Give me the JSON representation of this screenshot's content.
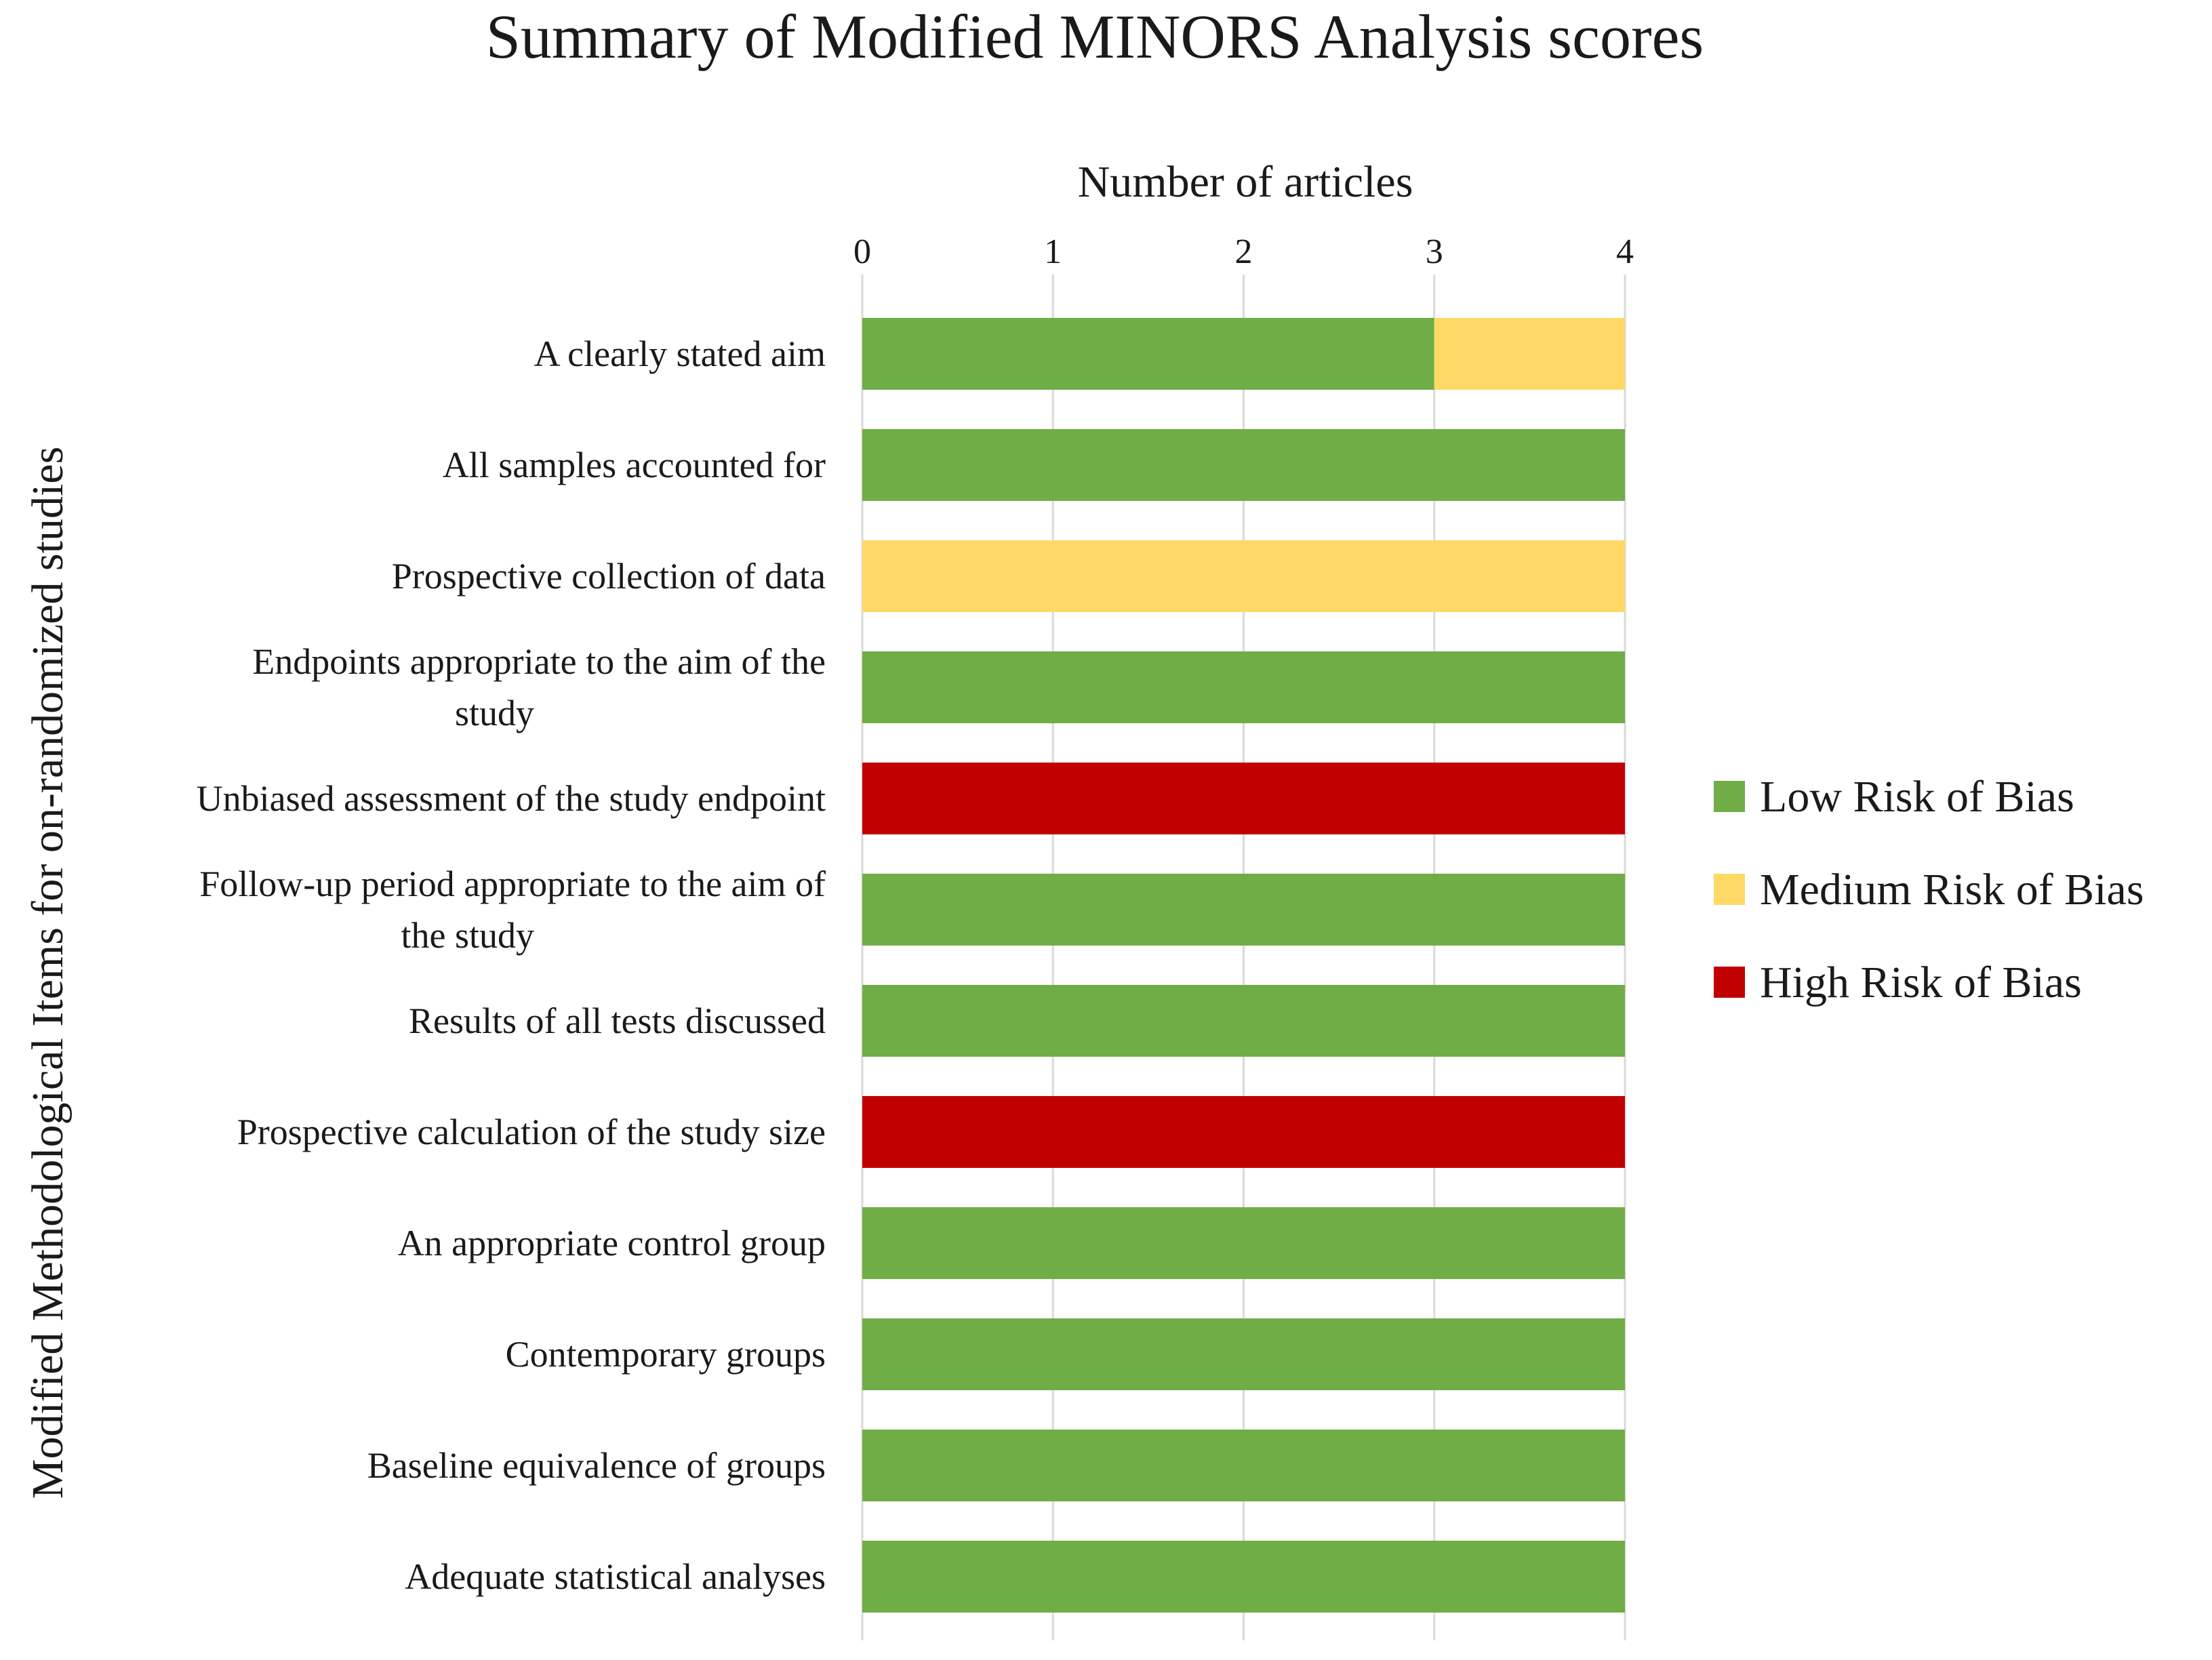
{
  "chart_data": {
    "type": "bar",
    "orientation": "horizontal",
    "stacked": true,
    "title": "Summary of Modified MINORS Analysis scores",
    "xlabel": "Number of articles",
    "ylabel": "Modified Methodological Items for on-randomized studies",
    "xlim": [
      0,
      4
    ],
    "xticks": [
      "0",
      "1",
      "2",
      "3",
      "4"
    ],
    "grid": true,
    "legend_position": "right",
    "categories": [
      "A clearly stated aim",
      "All samples accounted for",
      "Prospective collection of data",
      [
        "Endpoints appropriate to the aim of the",
        "study"
      ],
      "Unbiased assessment of the study endpoint",
      [
        "Follow-up period appropriate to the aim of",
        "the study"
      ],
      "Results of all tests discussed",
      "Prospective calculation of the study size",
      "An appropriate  control group",
      "Contemporary groups",
      "Baseline equivalence of groups",
      "Adequate statistical analyses"
    ],
    "series": [
      {
        "name": "Low Risk of Bias",
        "color": "#70ad47",
        "values": [
          3,
          4,
          0,
          4,
          0,
          4,
          4,
          0,
          4,
          4,
          4,
          4
        ]
      },
      {
        "name": "Medium Risk of Bias",
        "color": "#ffd966",
        "values": [
          1,
          0,
          4,
          0,
          0,
          0,
          0,
          0,
          0,
          0,
          0,
          0
        ]
      },
      {
        "name": "High Risk of Bias",
        "color": "#c00000",
        "values": [
          0,
          0,
          0,
          0,
          4,
          0,
          0,
          4,
          0,
          0,
          0,
          0
        ]
      }
    ]
  }
}
